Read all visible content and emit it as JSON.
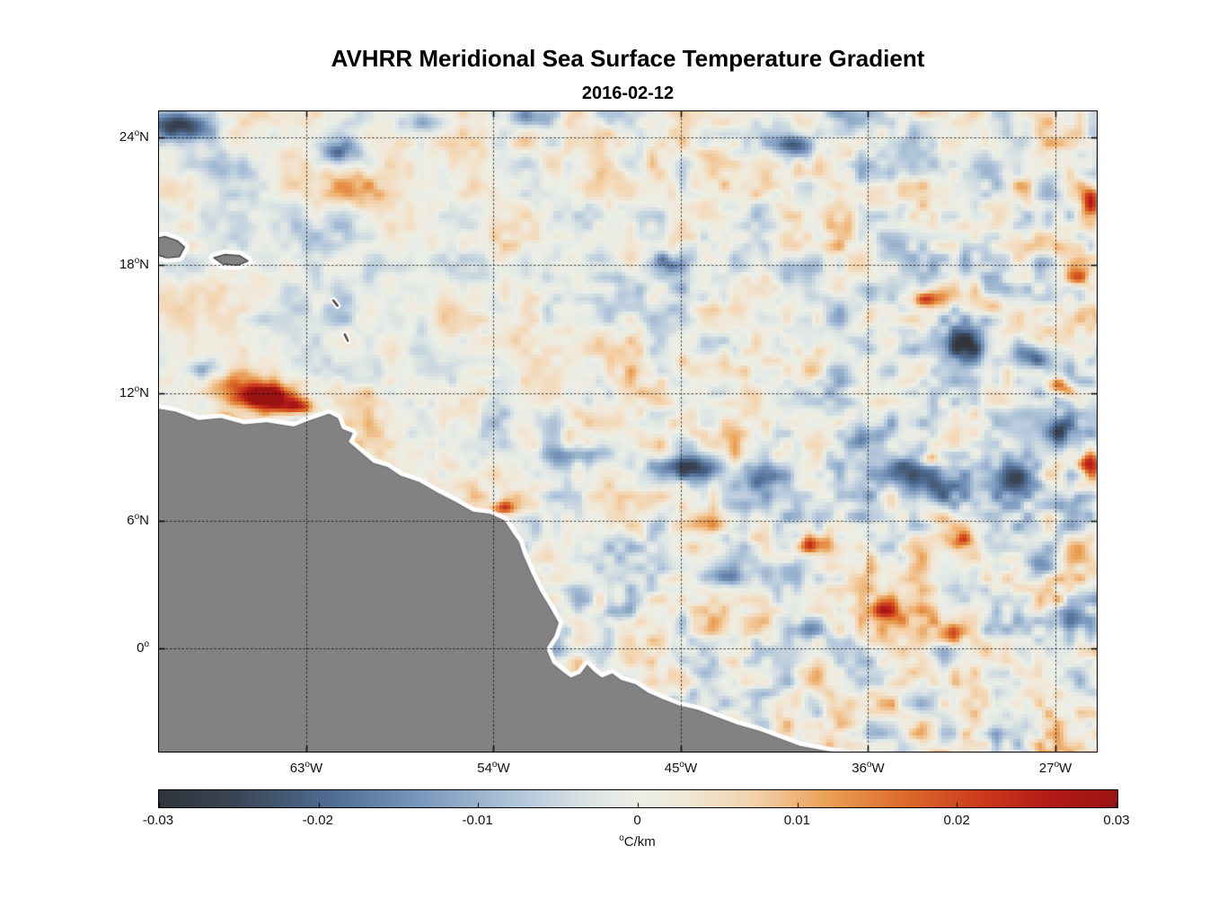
{
  "chart_data": {
    "type": "heatmap",
    "title": "AVHRR Meridional Sea Surface Temperature Gradient",
    "subtitle": "2016-02-12",
    "lon_range": [
      -70.12,
      -24.97
    ],
    "lat_range": [
      -4.89,
      25.27
    ],
    "degree_symbol": "o",
    "grid": true,
    "lat_ticks": [
      {
        "value": 24,
        "num": "24",
        "hemi": "N"
      },
      {
        "value": 18,
        "num": "18",
        "hemi": "N"
      },
      {
        "value": 12,
        "num": "12",
        "hemi": "N"
      },
      {
        "value": 6,
        "num": "6",
        "hemi": "N"
      },
      {
        "value": 0,
        "num": "0",
        "hemi": ""
      }
    ],
    "lon_ticks": [
      {
        "value": -63,
        "num": "63",
        "hemi": "W"
      },
      {
        "value": -54,
        "num": "54",
        "hemi": "W"
      },
      {
        "value": -45,
        "num": "45",
        "hemi": "W"
      },
      {
        "value": -36,
        "num": "36",
        "hemi": "W"
      },
      {
        "value": -27,
        "num": "27",
        "hemi": "W"
      }
    ],
    "colorbar": {
      "ticks": [
        "-0.03",
        "-0.02",
        "-0.01",
        "0",
        "0.01",
        "0.02",
        "0.03"
      ],
      "unit_sup": "o",
      "unit_text": "C/km"
    },
    "colormap": {
      "domain": [
        -0.03,
        0.03
      ],
      "stops": [
        [
          0.0,
          "#31343b"
        ],
        [
          0.08,
          "#3a4656"
        ],
        [
          0.18,
          "#4f6d94"
        ],
        [
          0.28,
          "#7e9cbf"
        ],
        [
          0.38,
          "#b6c9dc"
        ],
        [
          0.45,
          "#dde5e4"
        ],
        [
          0.5,
          "#ecefe6"
        ],
        [
          0.55,
          "#f1e7d7"
        ],
        [
          0.62,
          "#f3d3ac"
        ],
        [
          0.7,
          "#ea9f54"
        ],
        [
          0.78,
          "#dd6a2a"
        ],
        [
          0.86,
          "#cb3a1d"
        ],
        [
          0.93,
          "#b31b16"
        ],
        [
          1.0,
          "#9a1313"
        ]
      ]
    },
    "noise_seed": 20160212,
    "features": [
      [
        -64.9,
        11.9,
        0.034,
        1.3,
        0.55
      ],
      [
        -66.3,
        12.3,
        0.02,
        1.6,
        0.8
      ],
      [
        -63.6,
        11.4,
        0.022,
        0.9,
        0.35
      ],
      [
        -66.9,
        10.95,
        0.012,
        0.8,
        0.35
      ],
      [
        -53.6,
        6.7,
        0.02,
        0.7,
        0.35
      ],
      [
        -33.2,
        9.0,
        0.022,
        0.55,
        0.35
      ],
      [
        -38.8,
        5.0,
        0.018,
        0.8,
        0.45
      ],
      [
        -35.3,
        1.9,
        0.016,
        0.8,
        0.5
      ],
      [
        -32.3,
        0.8,
        0.014,
        0.7,
        0.45
      ],
      [
        -25.6,
        8.8,
        0.022,
        0.5,
        0.5
      ],
      [
        -25.5,
        20.9,
        0.024,
        0.5,
        0.8
      ],
      [
        -33.4,
        16.5,
        0.02,
        0.7,
        0.4
      ],
      [
        -30.1,
        16.1,
        0.016,
        0.7,
        0.4
      ],
      [
        -31.8,
        5.2,
        0.016,
        0.6,
        0.4
      ],
      [
        -27.0,
        12.4,
        0.018,
        0.6,
        0.4
      ],
      [
        -60.5,
        21.7,
        0.007,
        2.5,
        1.0
      ],
      [
        -44.0,
        6.1,
        0.01,
        1.2,
        0.5
      ],
      [
        -26.0,
        17.5,
        0.014,
        0.5,
        0.6
      ],
      [
        -69.3,
        24.6,
        -0.024,
        1.6,
        0.7
      ],
      [
        -61.6,
        23.4,
        -0.018,
        1.0,
        0.6
      ],
      [
        -66.5,
        22.7,
        -0.01,
        1.3,
        0.6
      ],
      [
        -39.6,
        23.6,
        -0.018,
        1.1,
        0.6
      ],
      [
        -36.0,
        22.2,
        -0.012,
        1.2,
        0.6
      ],
      [
        -30.3,
        22.6,
        -0.012,
        1.1,
        0.7
      ],
      [
        -27.6,
        18.1,
        -0.016,
        0.9,
        0.5
      ],
      [
        -45.9,
        18.2,
        -0.012,
        0.8,
        0.5
      ],
      [
        -31.4,
        14.4,
        -0.022,
        1.3,
        0.7
      ],
      [
        -28.3,
        13.8,
        -0.018,
        0.9,
        0.6
      ],
      [
        -50.2,
        9.2,
        -0.013,
        1.5,
        0.45
      ],
      [
        -44.5,
        8.6,
        -0.024,
        1.6,
        0.6
      ],
      [
        -41.2,
        8.2,
        -0.022,
        1.3,
        0.6
      ],
      [
        -33.6,
        8.3,
        -0.026,
        1.9,
        1.1
      ],
      [
        -36.2,
        10.0,
        -0.018,
        1.0,
        0.7
      ],
      [
        -26.9,
        10.3,
        -0.018,
        0.8,
        0.7
      ],
      [
        -26.2,
        6.9,
        -0.016,
        0.7,
        0.5
      ],
      [
        -28.2,
        4.0,
        -0.016,
        0.9,
        0.6
      ],
      [
        -26.5,
        1.5,
        -0.014,
        0.8,
        0.6
      ],
      [
        -43.3,
        3.6,
        -0.018,
        1.1,
        0.6
      ],
      [
        -38.9,
        1.0,
        -0.014,
        0.9,
        0.5
      ],
      [
        -48.2,
        1.8,
        -0.01,
        0.8,
        0.4
      ],
      [
        -63.0,
        20.3,
        -0.008,
        1.8,
        0.9
      ],
      [
        -57.5,
        24.8,
        -0.014,
        1.2,
        0.5
      ],
      [
        -52.5,
        25.1,
        -0.01,
        1.5,
        0.5
      ],
      [
        -68.2,
        13.2,
        -0.01,
        0.8,
        0.4
      ],
      [
        -29.0,
        8.0,
        -0.018,
        0.9,
        0.9
      ]
    ],
    "land": {
      "color": "#828282",
      "fringe_color": "#ffffff",
      "polygons": [
        {
          "outline": "#707070",
          "points": [
            [
              -70.5,
              11.3
            ],
            [
              -69.3,
              11.1
            ],
            [
              -68.2,
              10.7
            ],
            [
              -67.1,
              10.8
            ],
            [
              -66.0,
              10.5
            ],
            [
              -64.9,
              10.6
            ],
            [
              -63.6,
              10.4
            ],
            [
              -62.8,
              10.7
            ],
            [
              -61.9,
              11.0
            ],
            [
              -61.5,
              10.8
            ],
            [
              -61.3,
              10.3
            ],
            [
              -60.8,
              10.1
            ],
            [
              -61.0,
              9.7
            ],
            [
              -60.4,
              9.2
            ],
            [
              -59.8,
              8.7
            ],
            [
              -59.1,
              8.5
            ],
            [
              -58.5,
              8.1
            ],
            [
              -57.6,
              7.8
            ],
            [
              -56.7,
              7.3
            ],
            [
              -55.9,
              6.9
            ],
            [
              -55.0,
              6.4
            ],
            [
              -54.2,
              6.3
            ],
            [
              -53.5,
              6.0
            ],
            [
              -53.1,
              5.4
            ],
            [
              -52.8,
              5.0
            ],
            [
              -52.6,
              4.4
            ],
            [
              -52.2,
              3.5
            ],
            [
              -51.8,
              2.7
            ],
            [
              -51.3,
              1.9
            ],
            [
              -50.9,
              1.2
            ],
            [
              -51.1,
              0.6
            ],
            [
              -51.5,
              0.0
            ],
            [
              -51.2,
              -0.7
            ],
            [
              -50.7,
              -1.1
            ],
            [
              -50.3,
              -1.4
            ],
            [
              -49.8,
              -1.2
            ],
            [
              -49.5,
              -0.8
            ],
            [
              -49.2,
              -1.1
            ],
            [
              -48.8,
              -1.4
            ],
            [
              -48.3,
              -1.2
            ],
            [
              -47.9,
              -1.5
            ],
            [
              -47.2,
              -1.7
            ],
            [
              -46.6,
              -2.1
            ],
            [
              -45.9,
              -2.4
            ],
            [
              -45.1,
              -2.7
            ],
            [
              -44.2,
              -2.9
            ],
            [
              -43.4,
              -3.2
            ],
            [
              -42.3,
              -3.6
            ],
            [
              -41.2,
              -3.9
            ],
            [
              -40.1,
              -4.3
            ],
            [
              -39.3,
              -4.6
            ],
            [
              -38.2,
              -4.8
            ],
            [
              -37.0,
              -5.0
            ],
            [
              -36.6,
              -5.4
            ],
            [
              -70.5,
              -5.4
            ]
          ]
        },
        {
          "outline": "#3f3f3f",
          "points": [
            [
              -70.4,
              19.2
            ],
            [
              -69.8,
              19.35
            ],
            [
              -69.2,
              19.15
            ],
            [
              -68.85,
              18.85
            ],
            [
              -69.1,
              18.4
            ],
            [
              -69.7,
              18.35
            ],
            [
              -70.4,
              18.55
            ]
          ]
        },
        {
          "outline": "#3f3f3f",
          "points": [
            [
              -67.45,
              18.35
            ],
            [
              -66.9,
              18.5
            ],
            [
              -66.2,
              18.45
            ],
            [
              -65.8,
              18.2
            ],
            [
              -66.3,
              18.0
            ],
            [
              -67.0,
              18.05
            ]
          ]
        }
      ],
      "islets": [
        [
          [
            -61.7,
            16.35
          ],
          [
            -61.5,
            16.1
          ]
        ],
        [
          [
            -61.15,
            14.75
          ],
          [
            -61.0,
            14.45
          ]
        ]
      ]
    }
  }
}
